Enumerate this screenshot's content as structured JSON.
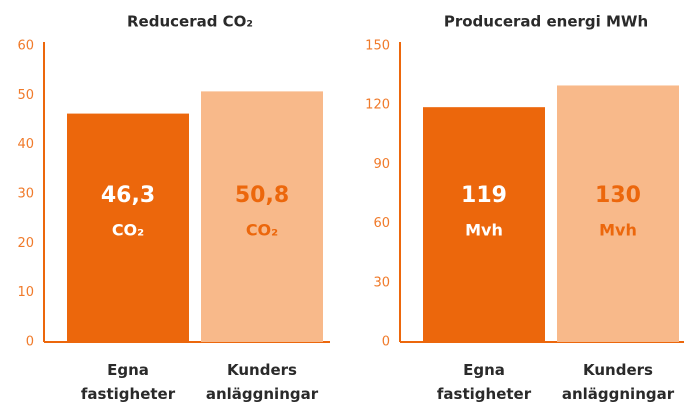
{
  "chart_data": [
    {
      "type": "bar",
      "title": "Reducerad CO₂",
      "categories": [
        "Egna fastigheter",
        "Kunders anläggningar"
      ],
      "values": [
        46.3,
        50.8
      ],
      "value_labels": [
        "46,3",
        "50,8"
      ],
      "value_unit": "CO₂",
      "colors": [
        "#ec670c",
        "#f8b98a"
      ],
      "label_colors": [
        "#ffffff",
        "#ec670c"
      ],
      "ylim": [
        0,
        60
      ],
      "yticks": [
        0,
        10,
        20,
        30,
        40,
        50,
        60
      ]
    },
    {
      "type": "bar",
      "title": "Producerad energi MWh",
      "categories": [
        "Egna fastigheter",
        "Kunders anläggningar"
      ],
      "values": [
        119,
        130
      ],
      "value_unit": "Mvh",
      "colors": [
        "#ec670c",
        "#f8b98a"
      ],
      "label_colors": [
        "#ffffff",
        "#ec670c"
      ],
      "ylim": [
        0,
        150
      ],
      "yticks": [
        0,
        30,
        60,
        90,
        120,
        150
      ]
    }
  ]
}
